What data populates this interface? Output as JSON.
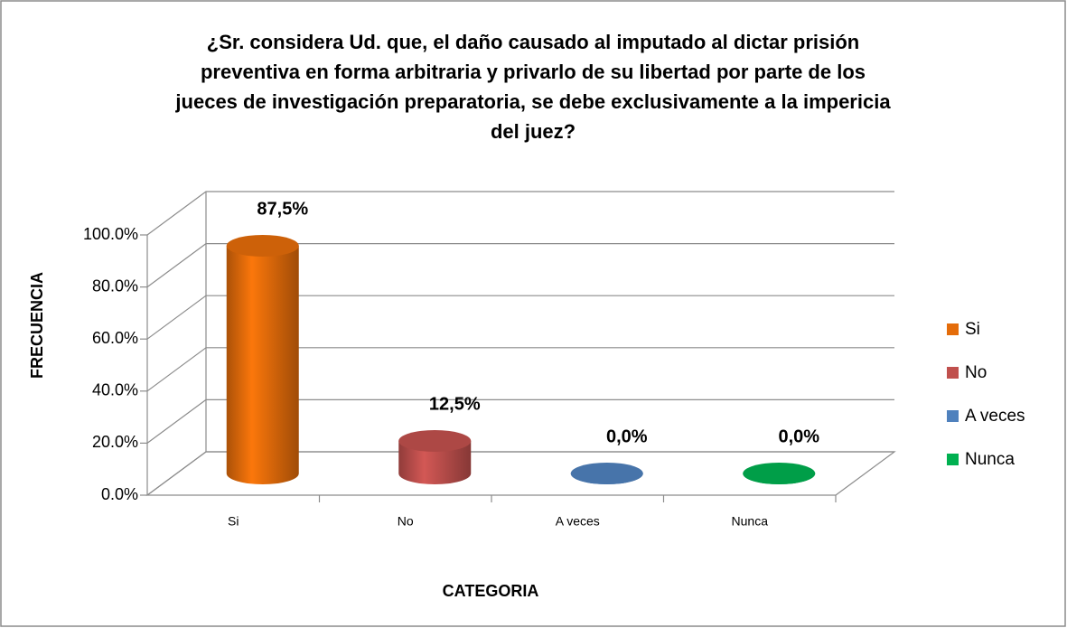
{
  "chart_data": {
    "type": "bar3d",
    "title": [
      "¿Sr. considera Ud. que, el daño causado al imputado al dictar prisión",
      "preventiva en forma arbitraria y privarlo de su libertad por parte de los",
      "jueces de investigación preparatoria, se debe exclusivamente a la impericia",
      "del juez?"
    ],
    "categories": [
      "Si",
      "No",
      "A veces",
      "Nunca"
    ],
    "values": [
      87.5,
      12.5,
      0,
      0
    ],
    "value_labels": [
      "87,5%",
      "12,5%",
      "0,0%",
      "0,0%"
    ],
    "colors": [
      "#e46c0a",
      "#c0504d",
      "#4f81bd",
      "#00b050"
    ],
    "ylim": [
      0,
      100
    ],
    "yticks": [
      {
        "value": 0,
        "label": "0.0%"
      },
      {
        "value": 20,
        "label": "20.0%"
      },
      {
        "value": 40,
        "label": "40.0%"
      },
      {
        "value": 60,
        "label": "60.0%"
      },
      {
        "value": 80,
        "label": "80.0%"
      },
      {
        "value": 100,
        "label": "100.0%"
      }
    ],
    "ylabel": "FRECUENCIA",
    "xlabel": "CATEGORIA",
    "grid": true,
    "legend": "right"
  }
}
